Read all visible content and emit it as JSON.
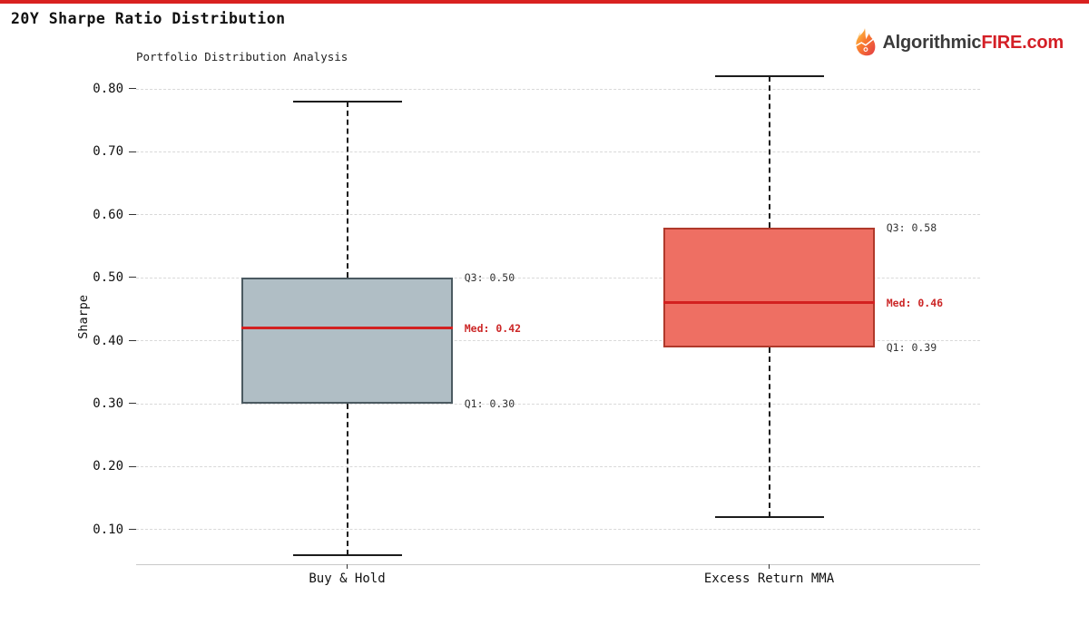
{
  "page": {
    "top_border_color": "#d92120"
  },
  "header": {
    "title": "20Y Sharpe Ratio Distribution",
    "logo": {
      "icon": "flame-icon",
      "prefix": "Algorithmic",
      "suffix": "FIRE.com",
      "prefix_color": "#3b3b3b",
      "suffix_color": "#d41f26"
    }
  },
  "chart_data": {
    "type": "boxplot",
    "title": "Portfolio Distribution Analysis",
    "ylabel": "Sharpe",
    "ylim": [
      0.045,
      0.826
    ],
    "yticks": [
      0.1,
      0.2,
      0.3,
      0.4,
      0.5,
      0.6,
      0.7,
      0.8
    ],
    "grid": "horizontal-dashed",
    "legend": "none",
    "categories": [
      "Buy & Hold",
      "Excess Return MMA"
    ],
    "series": [
      {
        "name": "Buy & Hold",
        "whisker_low": 0.06,
        "q1": 0.3,
        "median": 0.42,
        "q3": 0.5,
        "whisker_high": 0.78,
        "box_fill": "#b0bec5",
        "box_border": "#4b5a61",
        "labels": {
          "q3": "Q3: 0.50",
          "med": "Med: 0.42",
          "q1": "Q1: 0.30"
        }
      },
      {
        "name": "Excess Return MMA",
        "whisker_low": 0.12,
        "q1": 0.39,
        "median": 0.46,
        "q3": 0.58,
        "whisker_high": 0.82,
        "box_fill": "#ee6f63",
        "box_border": "#b0392b",
        "labels": {
          "q3": "Q3: 0.58",
          "med": "Med: 0.46",
          "q1": "Q1: 0.39"
        }
      }
    ],
    "median_color": "#d32020",
    "quartile_label_color": "#333333",
    "median_label_color": "#cc2727"
  }
}
